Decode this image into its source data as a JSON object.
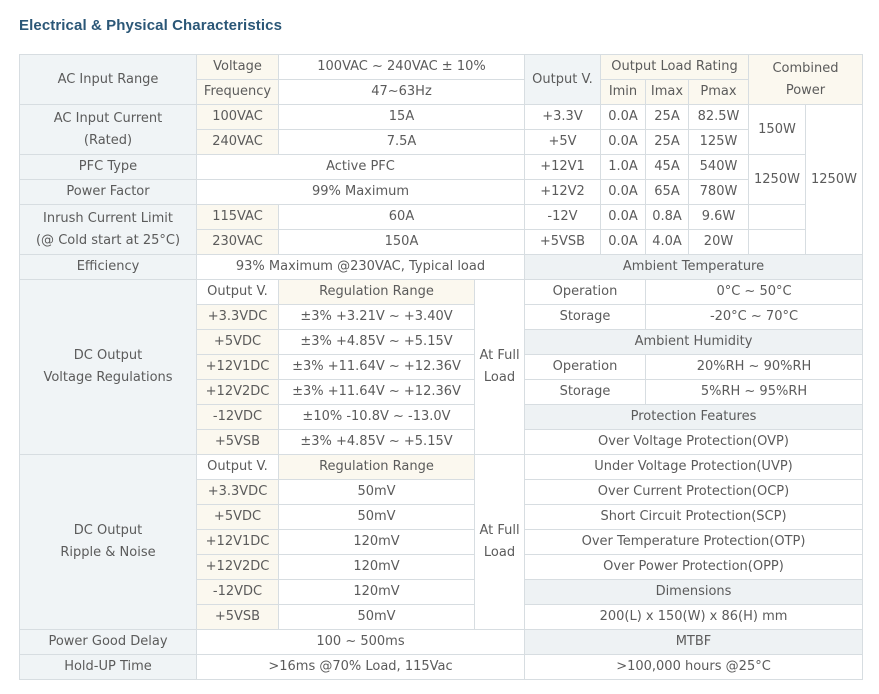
{
  "title": "Electrical & Physical Characteristics",
  "ac_input": {
    "range_label": "AC Input Range",
    "voltage_label": "Voltage",
    "voltage_value": "100VAC ~ 240VAC ± 10%",
    "frequency_label": "Frequency",
    "frequency_value": "47~63Hz",
    "current_label_1": "AC Input Current",
    "current_label_2": "(Rated)",
    "current_rows": [
      {
        "v": "100VAC",
        "a": "15A"
      },
      {
        "v": "240VAC",
        "a": "7.5A"
      }
    ],
    "pfc_label": "PFC Type",
    "pfc_value": "Active PFC",
    "pf_label": "Power Factor",
    "pf_value": "99% Maximum",
    "inrush_label_1": "Inrush Current Limit",
    "inrush_label_2": "(@ Cold start at 25°C)",
    "inrush_rows": [
      {
        "v": "115VAC",
        "a": "60A"
      },
      {
        "v": "230VAC",
        "a": "150A"
      }
    ],
    "efficiency_label": "Efficiency",
    "efficiency_value": "93% Maximum @230VAC, Typical load"
  },
  "output_load": {
    "output_v_label": "Output V.",
    "rating_label": "Output Load Rating",
    "combined_label_1": "Combined",
    "combined_label_2": "Power",
    "imin_label": "Imin",
    "imax_label": "Imax",
    "pmax_label": "Pmax",
    "rows": [
      {
        "v": "+3.3V",
        "imin": "0.0A",
        "imax": "25A",
        "pmax": "82.5W"
      },
      {
        "v": "+5V",
        "imin": "0.0A",
        "imax": "25A",
        "pmax": "125W"
      },
      {
        "v": "+12V1",
        "imin": "1.0A",
        "imax": "45A",
        "pmax": "540W"
      },
      {
        "v": "+12V2",
        "imin": "0.0A",
        "imax": "65A",
        "pmax": "780W"
      },
      {
        "v": "-12V",
        "imin": "0.0A",
        "imax": "0.8A",
        "pmax": "9.6W"
      },
      {
        "v": "+5VSB",
        "imin": "0.0A",
        "imax": "4.0A",
        "pmax": "20W"
      }
    ],
    "combined_33_5": "150W",
    "combined_12": "1250W",
    "combined_total": "1250W"
  },
  "dc_regulation": {
    "label_1": "DC Output",
    "label_2": "Voltage Regulations",
    "output_v_label": "Output V.",
    "range_label": "Regulation Range",
    "at_full_1": "At Full",
    "at_full_2": "Load",
    "rows": [
      {
        "v": "+3.3VDC",
        "r": "±3% +3.21V ~ +3.40V"
      },
      {
        "v": "+5VDC",
        "r": "±3% +4.85V ~ +5.15V"
      },
      {
        "v": "+12V1DC",
        "r": "±3% +11.64V ~ +12.36V"
      },
      {
        "v": "+12V2DC",
        "r": "±3% +11.64V ~ +12.36V"
      },
      {
        "v": "-12VDC",
        "r": "±10% -10.8V ~ -13.0V"
      },
      {
        "v": "+5VSB",
        "r": "±3% +4.85V ~ +5.15V"
      }
    ]
  },
  "dc_ripple": {
    "label_1": "DC Output",
    "label_2": "Ripple & Noise",
    "output_v_label": "Output V.",
    "range_label": "Regulation Range",
    "at_full_1": "At Full",
    "at_full_2": "Load",
    "rows": [
      {
        "v": "+3.3VDC",
        "r": "50mV"
      },
      {
        "v": "+5VDC",
        "r": "50mV"
      },
      {
        "v": "+12V1DC",
        "r": "120mV"
      },
      {
        "v": "+12V2DC",
        "r": "120mV"
      },
      {
        "v": "-12VDC",
        "r": "120mV"
      },
      {
        "v": "+5VSB",
        "r": "50mV"
      }
    ]
  },
  "ambient_temperature": {
    "label": "Ambient Temperature",
    "operation_label": "Operation",
    "operation_value": "0°C ~ 50°C",
    "storage_label": "Storage",
    "storage_value": "-20°C ~ 70°C"
  },
  "ambient_humidity": {
    "label": "Ambient Humidity",
    "operation_label": "Operation",
    "operation_value": "20%RH ~ 90%RH",
    "storage_label": "Storage",
    "storage_value": "5%RH ~ 95%RH"
  },
  "protection": {
    "label": "Protection Features",
    "items": [
      "Over Voltage Protection(OVP)",
      "Under Voltage Protection(UVP)",
      "Over Current Protection(OCP)",
      "Short Circuit Protection(SCP)",
      "Over Temperature Protection(OTP)",
      "Over Power Protection(OPP)"
    ]
  },
  "dimensions": {
    "label": "Dimensions",
    "value": "200(L) x 150(W) x 86(H) mm"
  },
  "power_good": {
    "label": "Power Good Delay",
    "value": "100 ~ 500ms"
  },
  "mtbf": {
    "label": "MTBF",
    "value": ">100,000 hours @25°C"
  },
  "hold_up": {
    "label": "Hold-UP Time",
    "value": ">16ms @70% Load, 115Vac"
  },
  "colors": {
    "title": "#2b5777",
    "label_bg": "#f0f4f6",
    "subheader_bg": "#fbf8ef",
    "border": "#d7dde1"
  }
}
